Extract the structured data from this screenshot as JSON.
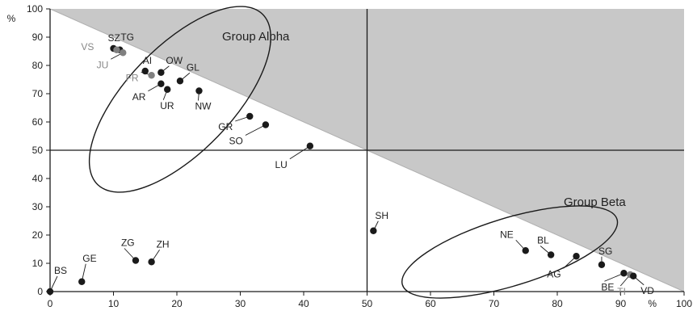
{
  "chart_data": {
    "type": "scatter",
    "xlim": [
      0,
      100
    ],
    "ylim": [
      0,
      100
    ],
    "x_ticks": [
      0,
      10,
      20,
      30,
      40,
      50,
      60,
      70,
      80,
      90,
      100
    ],
    "y_ticks": [
      0,
      10,
      20,
      30,
      40,
      50,
      60,
      70,
      80,
      90,
      100
    ],
    "x_unit": "%",
    "y_unit": "%",
    "reference_lines": {
      "x": 50,
      "y": 50
    },
    "shaded_region": "above the diagonal from (0,100) to (100,0)",
    "colors": {
      "shade": "#c8c8c8",
      "point": "#1a1a1a",
      "point_grey": "#808080",
      "line": "#1a1a1a"
    },
    "groups": [
      {
        "name": "Group Alpha",
        "ellipse": {
          "cx": 20.5,
          "cy": 68,
          "rx": 28,
          "ry": 12.5,
          "angle_deg": 46
        }
      },
      {
        "name": "Group Beta",
        "ellipse": {
          "cx": 72.5,
          "cy": 14,
          "rx": 26.5,
          "ry": 8,
          "angle_deg": 17
        }
      }
    ],
    "points": [
      {
        "label": "SZ",
        "x": 10,
        "y": 86,
        "grey": false
      },
      {
        "label": "TG",
        "x": 11,
        "y": 85.5,
        "grey": false
      },
      {
        "label": "VS",
        "x": 10.5,
        "y": 85.5,
        "grey": true
      },
      {
        "label": "JU",
        "x": 11.5,
        "y": 84.5,
        "grey": true
      },
      {
        "label": "AI",
        "x": 15,
        "y": 78,
        "grey": false
      },
      {
        "label": "FR",
        "x": 16,
        "y": 76.5,
        "grey": true
      },
      {
        "label": "OW",
        "x": 17.5,
        "y": 77.5,
        "grey": false
      },
      {
        "label": "GL",
        "x": 20.5,
        "y": 74.5,
        "grey": false
      },
      {
        "label": "AR",
        "x": 17.5,
        "y": 73.5,
        "grey": false
      },
      {
        "label": "UR",
        "x": 18.5,
        "y": 71.5,
        "grey": false
      },
      {
        "label": "NW",
        "x": 23.5,
        "y": 71,
        "grey": false
      },
      {
        "label": "GR",
        "x": 31.5,
        "y": 62,
        "grey": false
      },
      {
        "label": "SO",
        "x": 34,
        "y": 59,
        "grey": false
      },
      {
        "label": "LU",
        "x": 41,
        "y": 51.5,
        "grey": false
      },
      {
        "label": "SH",
        "x": 51,
        "y": 21.5,
        "grey": false
      },
      {
        "label": "NE",
        "x": 75,
        "y": 14.5,
        "grey": false
      },
      {
        "label": "BL",
        "x": 79,
        "y": 13,
        "grey": false
      },
      {
        "label": "AG",
        "x": 83,
        "y": 12.5,
        "grey": false
      },
      {
        "label": "SG",
        "x": 87,
        "y": 9.5,
        "grey": false
      },
      {
        "label": "BE",
        "x": 90.5,
        "y": 6.5,
        "grey": false
      },
      {
        "label": "TI",
        "x": 91.5,
        "y": 6,
        "grey": true
      },
      {
        "label": "VD",
        "x": 92,
        "y": 5.5,
        "grey": false
      },
      {
        "label": "ZG",
        "x": 13.5,
        "y": 11,
        "grey": false
      },
      {
        "label": "ZH",
        "x": 16,
        "y": 10.5,
        "grey": false
      },
      {
        "label": "GE",
        "x": 5,
        "y": 3.5,
        "grey": false
      },
      {
        "label": "BS",
        "x": 0,
        "y": 0,
        "grey": false
      }
    ]
  }
}
